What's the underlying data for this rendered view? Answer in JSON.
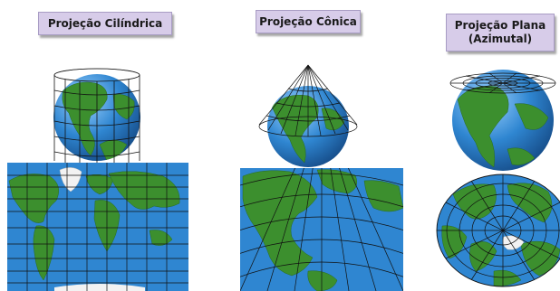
{
  "panels": [
    {
      "title": "Projeção Cilíndrica"
    },
    {
      "title": "Projeção Cônica"
    },
    {
      "title_line1": "Projeção Plana",
      "title_line2": "(Azimutal)"
    }
  ],
  "colors": {
    "ocean": "#2f86d1",
    "land": "#3c8f2e",
    "ice": "#f2f2f2",
    "grid": "#111111",
    "label_bg": "#d7cce9"
  }
}
